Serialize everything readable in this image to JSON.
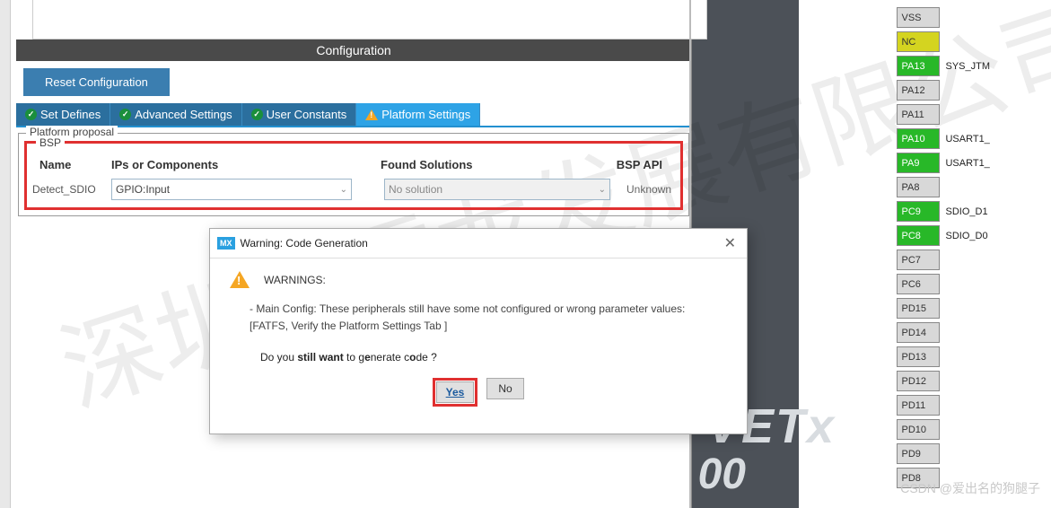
{
  "config": {
    "title": "Configuration",
    "reset_btn": "Reset Configuration",
    "tabs": {
      "set_defines": "Set Defines",
      "advanced": "Advanced Settings",
      "user_const": "User Constants",
      "platform": "Platform Settings"
    },
    "platform_proposal_legend": "Platform proposal",
    "bsp_legend": "BSP",
    "headers": {
      "name": "Name",
      "ips": "IPs or Components",
      "found": "Found Solutions",
      "api": "BSP API"
    },
    "row": {
      "name": "Detect_SDIO",
      "ips_value": "GPIO:Input",
      "found_value": "No solution",
      "api": "Unknown"
    }
  },
  "dialog": {
    "title": "Warning: Code Generation",
    "mx": "MX",
    "heading": "WARNINGS:",
    "line1": "- Main Config: These peripherals still have some not configured or wrong parameter values:",
    "line2": "[FATFS, Verify the Platform Settings Tab ]",
    "question_pre": "Do you ",
    "question_b1": "still want",
    "question_mid": " to g",
    "question_b2": "e",
    "question_mid2": "nerate c",
    "question_b3": "o",
    "question_end": "de ?",
    "yes": "Yes",
    "no": "No"
  },
  "pins": [
    {
      "name": "VSS",
      "cls": "gray",
      "label": ""
    },
    {
      "name": "NC",
      "cls": "yellow",
      "label": ""
    },
    {
      "name": "PA13",
      "cls": "green",
      "label": "SYS_JTM"
    },
    {
      "name": "PA12",
      "cls": "gray",
      "label": ""
    },
    {
      "name": "PA11",
      "cls": "gray",
      "label": ""
    },
    {
      "name": "PA10",
      "cls": "green",
      "label": "USART1_"
    },
    {
      "name": "PA9",
      "cls": "green",
      "label": "USART1_"
    },
    {
      "name": "PA8",
      "cls": "gray",
      "label": ""
    },
    {
      "name": "PC9",
      "cls": "green",
      "label": "SDIO_D1"
    },
    {
      "name": "PC8",
      "cls": "green",
      "label": "SDIO_D0"
    },
    {
      "name": "PC7",
      "cls": "gray",
      "label": ""
    },
    {
      "name": "PC6",
      "cls": "gray",
      "label": ""
    },
    {
      "name": "PD15",
      "cls": "gray",
      "label": ""
    },
    {
      "name": "PD14",
      "cls": "gray",
      "label": ""
    },
    {
      "name": "PD13",
      "cls": "gray",
      "label": ""
    },
    {
      "name": "PD12",
      "cls": "gray",
      "label": ""
    },
    {
      "name": "PD11",
      "cls": "gray",
      "label": ""
    },
    {
      "name": "PD10",
      "cls": "gray",
      "label": ""
    },
    {
      "name": "PD9",
      "cls": "gray",
      "label": ""
    },
    {
      "name": "PD8",
      "cls": "gray",
      "label": ""
    }
  ],
  "watermark": {
    "cn": "深圳市雪龙发展有限公司",
    "vetx": "VETx",
    "zeros": "00",
    "csdn": "CSDN @爱出名的狗腿子"
  }
}
